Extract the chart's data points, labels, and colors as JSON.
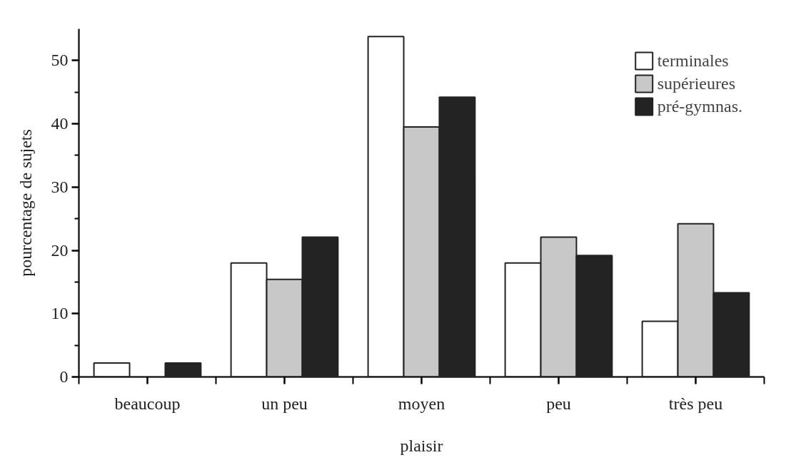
{
  "chart_data": {
    "type": "bar",
    "xlabel": "plaisir",
    "ylabel": "pourcentage de sujets",
    "categories": [
      "beaucoup",
      "un peu",
      "moyen",
      "peu",
      "très peu"
    ],
    "series": [
      {
        "name": "terminales",
        "color": "#ffffff",
        "values": [
          2.2,
          18.0,
          53.8,
          18.0,
          8.8
        ]
      },
      {
        "name": "supérieures",
        "color": "#c8c8c8",
        "values": [
          null,
          15.4,
          39.5,
          22.1,
          24.2
        ]
      },
      {
        "name": "pré-gymnas.",
        "color": "#222222",
        "values": [
          2.2,
          22.1,
          44.2,
          19.2,
          13.3
        ]
      }
    ],
    "ylim": [
      0,
      55
    ],
    "yticks": [
      0,
      {
        "value": 5,
        "label": null
      },
      10,
      {
        "value": 15,
        "label": null
      },
      20,
      {
        "value": 25,
        "label": null
      },
      30,
      {
        "value": 35,
        "label": null
      },
      40,
      {
        "value": 45,
        "label": null
      },
      50
    ],
    "grid": false,
    "legend": "top right"
  }
}
